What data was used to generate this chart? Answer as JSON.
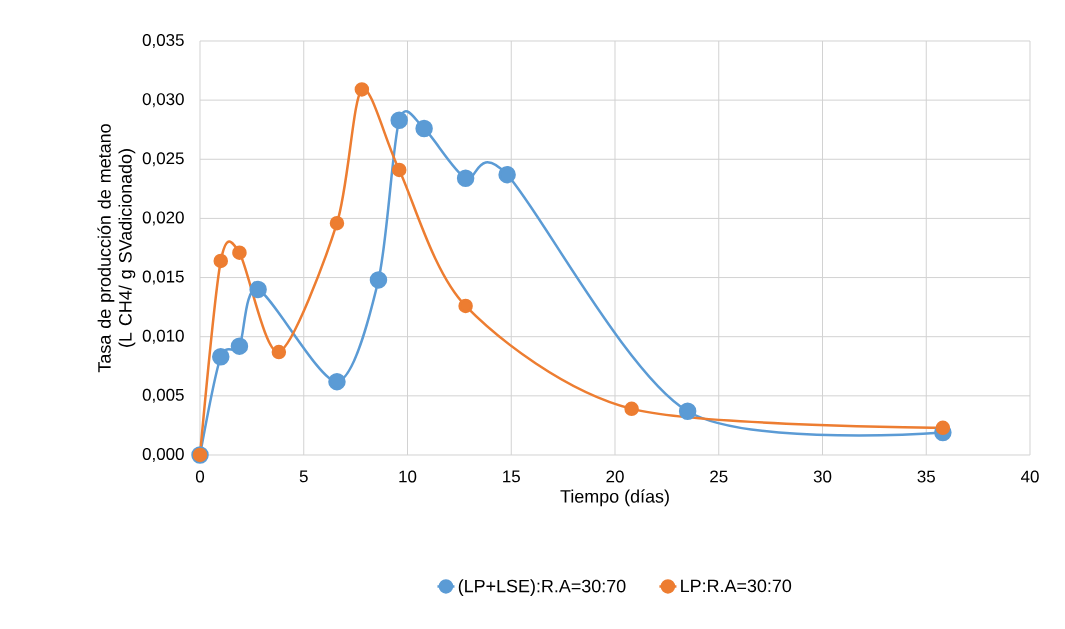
{
  "chart_data": {
    "type": "line",
    "xlabel": "Tiempo (días)",
    "ylabel": "Tasa de producción de metano (L CH4/ g SVadicionado)",
    "xlim": [
      0,
      40
    ],
    "xticks": [
      0,
      5,
      10,
      15,
      20,
      25,
      30,
      35,
      40
    ],
    "ylim": [
      0,
      0.035
    ],
    "yticks": [
      {
        "value": 0,
        "label": "0,000"
      },
      {
        "value": 0.005,
        "label": "0,005"
      },
      {
        "value": 0.01,
        "label": "0,010"
      },
      {
        "value": 0.015,
        "label": "0,015"
      },
      {
        "value": 0.02,
        "label": "0,020"
      },
      {
        "value": 0.025,
        "label": "0,025"
      },
      {
        "value": 0.03,
        "label": "0,030"
      },
      {
        "value": 0.035,
        "label": "0,035"
      }
    ],
    "grid": true,
    "legend": "bottom",
    "marker": "circle",
    "line_style": "solid",
    "series": [
      {
        "name": "(LP+LSE):R.A=30:70",
        "color": "#5b9bd5",
        "x": [
          0,
          1.0,
          1.9,
          2.8,
          6.6,
          8.6,
          9.6,
          10.8,
          12.8,
          14.8,
          23.5,
          35.8
        ],
        "values": [
          0,
          0.0083,
          0.0092,
          0.014,
          0.0062,
          0.0148,
          0.0283,
          0.0276,
          0.0234,
          0.0237,
          0.0037,
          0.0019
        ]
      },
      {
        "name": "LP:R.A=30:70",
        "color": "#ed7d31",
        "x": [
          0,
          1.0,
          1.9,
          3.8,
          6.6,
          7.8,
          9.6,
          12.8,
          20.8,
          35.8
        ],
        "values": [
          0,
          0.0164,
          0.0171,
          0.0087,
          0.0196,
          0.0309,
          0.0241,
          0.0126,
          0.0039,
          0.0023
        ]
      }
    ]
  }
}
